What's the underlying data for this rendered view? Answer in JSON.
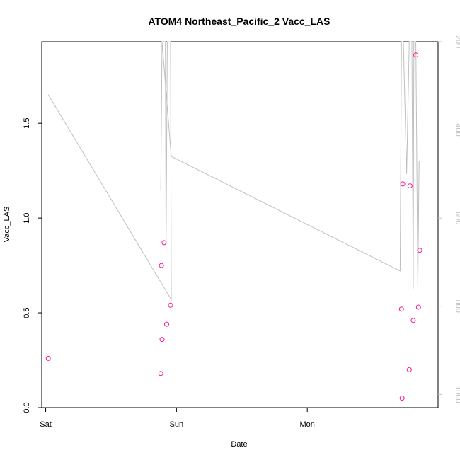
{
  "chart_data": {
    "type": "scatter",
    "title": "ATOM4 Northeast_Pacific_2 Vacc_LAS",
    "xlabel": "Date",
    "ylabel": "Vacc_LAS",
    "x_ticks": [
      "Sat",
      "Sun",
      "Mon"
    ],
    "y_ticks": [
      "0.0",
      "0.5",
      "1.0",
      "1.5"
    ],
    "ylim": [
      0,
      1.93
    ],
    "right_axis": {
      "ticks": [
        "200",
        "400",
        "600",
        "800",
        "1000"
      ],
      "range": [
        1030,
        200
      ],
      "reversed": true,
      "color": "#bfbfbf"
    },
    "x_range_days": [
      -0.03,
      3.0
    ],
    "series": [
      {
        "color": "#ff1493",
        "marker": "circle-open",
        "points": [
          {
            "x": 0.02,
            "y": 0.26
          },
          {
            "x": 0.88,
            "y": 0.18
          },
          {
            "x": 0.885,
            "y": 0.75
          },
          {
            "x": 0.89,
            "y": 0.36
          },
          {
            "x": 0.905,
            "y": 0.87
          },
          {
            "x": 0.925,
            "y": 0.44
          },
          {
            "x": 0.955,
            "y": 0.54
          },
          {
            "x": 2.72,
            "y": 0.52
          },
          {
            "x": 2.725,
            "y": 0.05
          },
          {
            "x": 2.73,
            "y": 1.18
          },
          {
            "x": 2.78,
            "y": 0.2
          },
          {
            "x": 2.785,
            "y": 1.17
          },
          {
            "x": 2.81,
            "y": 0.46
          },
          {
            "x": 2.83,
            "y": 1.86
          },
          {
            "x": 2.85,
            "y": 0.53
          },
          {
            "x": 2.86,
            "y": 0.83
          }
        ]
      },
      {
        "color": "#bfbfbf",
        "style": "line",
        "axis": "right",
        "points": [
          {
            "x": 0.02,
            "y": 320
          },
          {
            "x": 0.96,
            "y": 785
          },
          {
            "x": 0.955,
            "y": 200
          },
          {
            "x": 0.93,
            "y": 200
          },
          {
            "x": 0.92,
            "y": 680
          },
          {
            "x": 0.915,
            "y": 200
          },
          {
            "x": 0.89,
            "y": 200
          },
          {
            "x": 0.88,
            "y": 535
          },
          {
            "x": 0.89,
            "y": 200
          },
          {
            "x": 0.96,
            "y": 460
          },
          {
            "x": 2.71,
            "y": 720
          },
          {
            "x": 2.72,
            "y": 200
          },
          {
            "x": 2.735,
            "y": 200
          },
          {
            "x": 2.76,
            "y": 500
          },
          {
            "x": 2.78,
            "y": 200
          },
          {
            "x": 2.8,
            "y": 200
          },
          {
            "x": 2.81,
            "y": 760
          },
          {
            "x": 2.815,
            "y": 200
          },
          {
            "x": 2.83,
            "y": 200
          },
          {
            "x": 2.845,
            "y": 755
          },
          {
            "x": 2.855,
            "y": 470
          }
        ]
      }
    ]
  }
}
